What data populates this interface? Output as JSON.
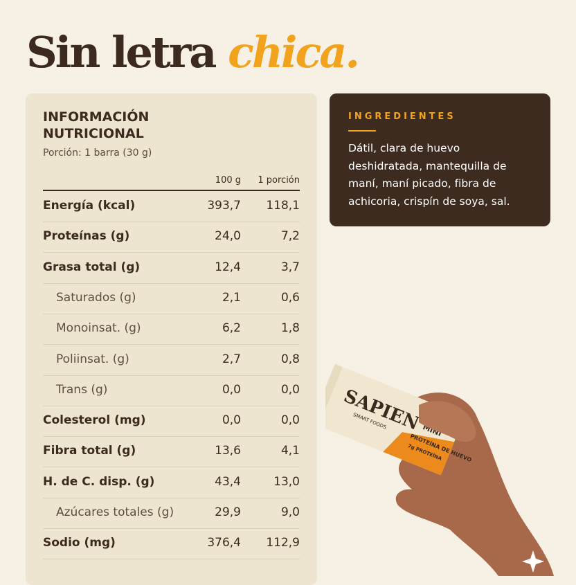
{
  "header": {
    "title": "Sin letra",
    "title_accent": "chica."
  },
  "nutrition": {
    "title": "INFORMACIÓN NUTRICIONAL",
    "portion": "Porción: 1 barra (30 g)",
    "columns": [
      "100 g",
      "1 porción"
    ],
    "rows": [
      {
        "label": "Energía (kcal)",
        "per_100g": "393,7",
        "per_portion": "118,1"
      },
      {
        "label": "Proteínas (g)",
        "per_100g": "24,0",
        "per_portion": "7,2"
      },
      {
        "label": "Grasa total (g)",
        "per_100g": "12,4",
        "per_portion": "3,7",
        "sub_rows": [
          {
            "label": "Saturados (g)",
            "per_100g": "2,1",
            "per_portion": "0,6"
          },
          {
            "label": "Monoinsat. (g)",
            "per_100g": "6,2",
            "per_portion": "1,8"
          },
          {
            "label": "Poliinsat. (g)",
            "per_100g": "2,7",
            "per_portion": "0,8"
          },
          {
            "label": "Trans (g)",
            "per_100g": "0,0",
            "per_portion": "0,0"
          }
        ]
      },
      {
        "label": "Colesterol (mg)",
        "per_100g": "0,0",
        "per_portion": "0,0"
      },
      {
        "label": "Fibra total (g)",
        "per_100g": "13,6",
        "per_portion": "4,1"
      },
      {
        "label": "H. de C. disp. (g)",
        "per_100g": "43,4",
        "per_portion": "13,0",
        "sub_rows": [
          {
            "label": "Azúcares totales (g)",
            "per_100g": "29,9",
            "per_portion": "9,0"
          }
        ]
      },
      {
        "label": "Sodio (mg)",
        "per_100g": "376,4",
        "per_portion": "112,9"
      }
    ]
  },
  "ingredients": {
    "title": "INGREDIENTES",
    "text": "Dátil, clara de huevo deshidratada, mantequilla de maní, maní picado, fibra de achicoria, crispín de soya, sal."
  },
  "product": {
    "brand": "SAPIEN",
    "tagline": "SMART FOODS",
    "size": "MINI",
    "claim": "PROTEÍNA DE HUEVO",
    "protein": "7g PROTEÍNA"
  }
}
